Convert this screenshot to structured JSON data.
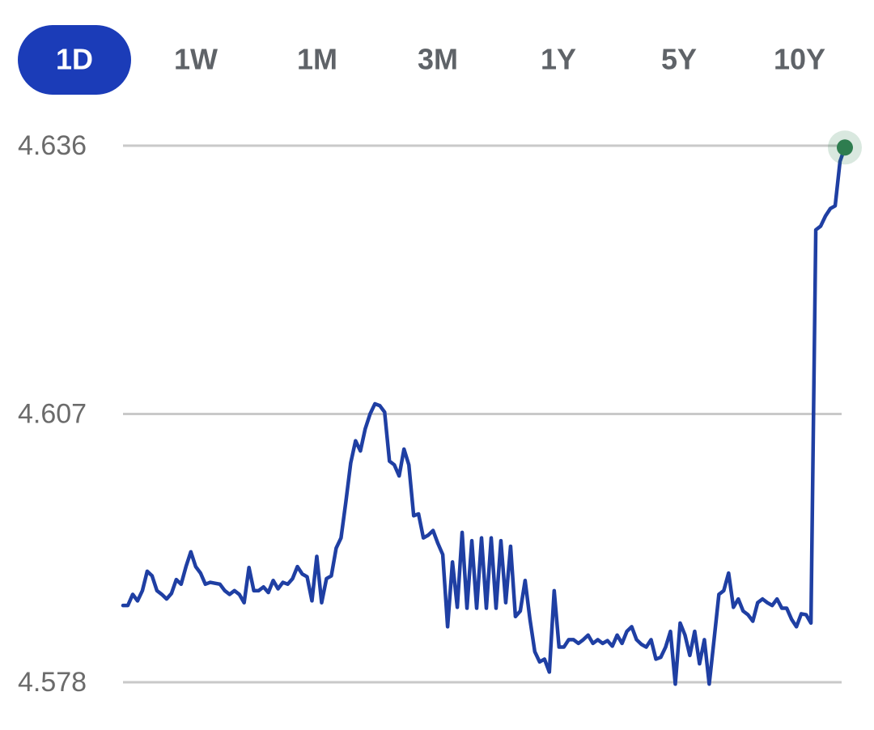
{
  "range_tabs": {
    "options": [
      "1D",
      "1W",
      "1M",
      "3M",
      "1Y",
      "5Y",
      "10Y"
    ],
    "active": 0
  },
  "chart_data": {
    "type": "line",
    "color": "#1f3fa3",
    "end_marker_color": "#2e7d4f",
    "ylim": [
      4.578,
      4.636
    ],
    "yticks": [
      4.578,
      4.607,
      4.636
    ],
    "grid": true,
    "values": [
      4.5863,
      4.5863,
      4.5875,
      4.5868,
      4.5879,
      4.59,
      4.5895,
      4.5879,
      4.5875,
      4.587,
      4.5876,
      4.5891,
      4.5886,
      4.5905,
      4.5921,
      4.5905,
      4.5898,
      4.5886,
      4.5888,
      4.5887,
      4.5886,
      4.5879,
      4.5875,
      4.5879,
      4.5875,
      4.5866,
      4.5904,
      4.5879,
      4.5879,
      4.5883,
      4.5877,
      4.589,
      4.5881,
      4.5888,
      4.5886,
      4.5892,
      4.5905,
      4.5897,
      4.5894,
      4.5868,
      4.5916,
      4.5866,
      4.5892,
      4.5895,
      4.5925,
      4.5936,
      4.5975,
      4.6017,
      4.6041,
      4.603,
      4.6054,
      4.607,
      4.6081,
      4.6079,
      4.6072,
      4.6019,
      4.6015,
      4.6003,
      4.6032,
      4.6015,
      4.596,
      4.5962,
      4.5936,
      4.5939,
      4.5944,
      4.593,
      4.5918,
      4.584,
      4.591,
      4.5861,
      4.5942,
      4.586,
      4.5933,
      4.586,
      4.5936,
      4.586,
      4.5936,
      4.586,
      4.5933,
      4.5866,
      4.5927,
      4.5851,
      4.5857,
      4.589,
      4.5848,
      4.5813,
      4.5802,
      4.5805,
      4.5791,
      4.5879,
      4.5818,
      4.5818,
      4.5826,
      4.5826,
      4.5822,
      4.5826,
      4.5831,
      4.5822,
      4.5826,
      4.5822,
      4.5825,
      4.5819,
      4.5831,
      4.5822,
      4.5835,
      4.584,
      4.5826,
      4.5821,
      4.5818,
      4.5826,
      4.5805,
      4.5807,
      4.5818,
      4.5835,
      4.5778,
      4.5844,
      4.5831,
      4.5809,
      4.5835,
      4.58,
      4.5826,
      4.5778,
      4.5826,
      4.5875,
      4.5879,
      4.5898,
      4.5861,
      4.587,
      4.5857,
      4.5853,
      4.5846,
      4.5866,
      4.587,
      4.5866,
      4.5863,
      4.587,
      4.586,
      4.586,
      4.5848,
      4.584,
      4.5854,
      4.5853,
      4.5844,
      4.6269,
      4.6273,
      4.6284,
      4.6292,
      4.6295,
      4.6343,
      4.6358
    ]
  }
}
